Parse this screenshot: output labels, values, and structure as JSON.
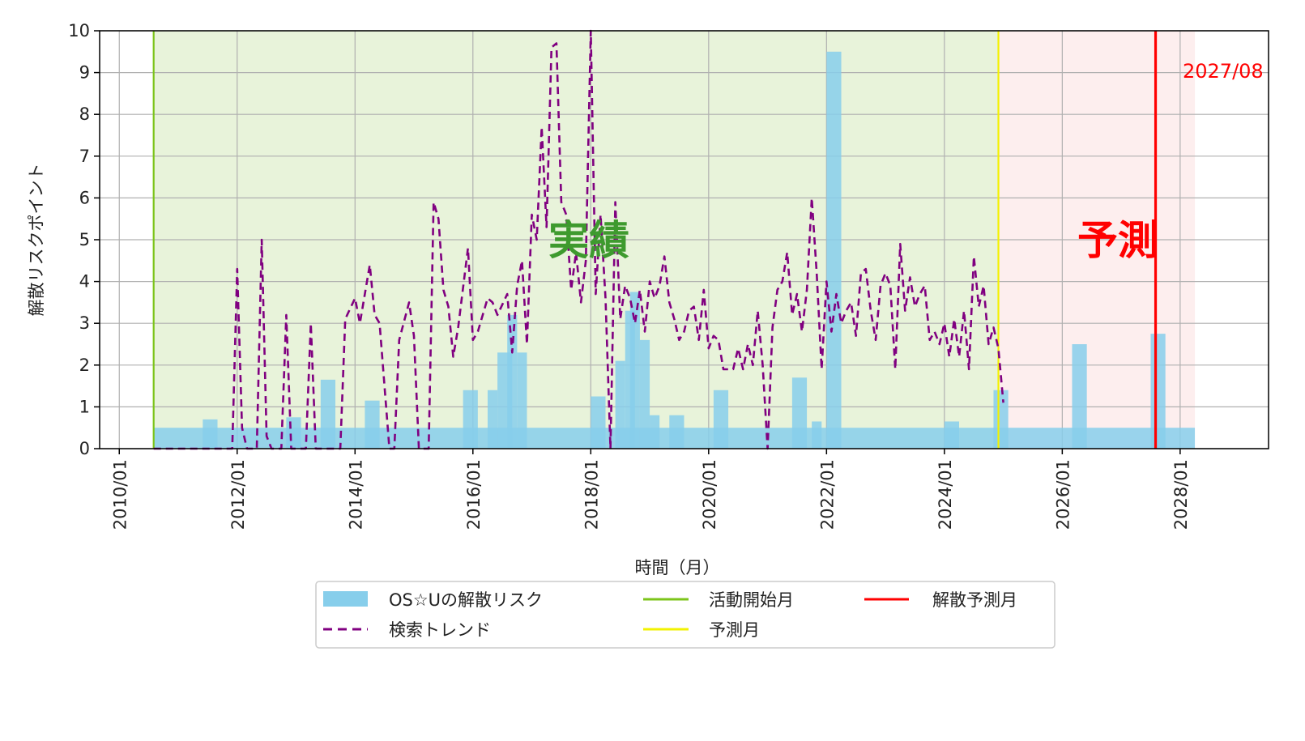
{
  "chart_data": {
    "type": "bar",
    "xlabel": "時間（月）",
    "ylabel": "解散リスクポイント",
    "ylim": [
      0,
      10
    ],
    "xlim": [
      "2009/09",
      "2029/07"
    ],
    "yticks": [
      "0",
      "1",
      "2",
      "3",
      "4",
      "5",
      "6",
      "7",
      "8",
      "9",
      "10"
    ],
    "xticks": [
      "2010/01",
      "2012/01",
      "2014/01",
      "2016/01",
      "2018/01",
      "2020/01",
      "2022/01",
      "2024/01",
      "2026/01",
      "2028/01"
    ],
    "grid": true,
    "legend_position": "bottom-center",
    "colors": {
      "bar": "#87ceeb",
      "trend": "#800080",
      "start_line": "#7cc41a",
      "forecast_line": "#f2f200",
      "dissolution_line": "#ff0000",
      "actual_region": "#e8f3da",
      "forecast_region": "#fdeeee",
      "actual_text": "#3e9a2e",
      "forecast_text": "#ff0000"
    },
    "regions": [
      {
        "label": "実績",
        "from": "2010/08",
        "to": "2024/12"
      },
      {
        "label": "予測",
        "from": "2024/12",
        "to": "2028/04"
      }
    ],
    "vlines": [
      {
        "name": "活動開始月",
        "x": "2010/08"
      },
      {
        "name": "予測月",
        "x": "2024/12"
      },
      {
        "name": "解散予測月",
        "x": "2027/08"
      }
    ],
    "annotation": "2027/08",
    "series": [
      {
        "name": "OS☆Uの解散リスク",
        "type": "bar",
        "baseline": 0.5,
        "segments": [
          {
            "from": "2011/06",
            "to": "2011/09",
            "value": 0.7
          },
          {
            "from": "2012/11",
            "to": "2013/02",
            "value": 0.75
          },
          {
            "from": "2013/06",
            "to": "2013/09",
            "value": 1.65
          },
          {
            "from": "2014/03",
            "to": "2014/06",
            "value": 1.15
          },
          {
            "from": "2015/11",
            "to": "2016/02",
            "value": 1.4
          },
          {
            "from": "2016/04",
            "to": "2016/06",
            "value": 1.4
          },
          {
            "from": "2016/06",
            "to": "2016/09",
            "value": 2.3
          },
          {
            "from": "2016/08",
            "to": "2016/10",
            "value": 3.2
          },
          {
            "from": "2016/10",
            "to": "2016/12",
            "value": 2.3
          },
          {
            "from": "2018/01",
            "to": "2018/04",
            "value": 1.25
          },
          {
            "from": "2018/06",
            "to": "2018/08",
            "value": 2.1
          },
          {
            "from": "2018/08",
            "to": "2018/10",
            "value": 3.3
          },
          {
            "from": "2018/09",
            "to": "2018/11",
            "value": 3.75
          },
          {
            "from": "2018/11",
            "to": "2019/01",
            "value": 2.6
          },
          {
            "from": "2019/01",
            "to": "2019/03",
            "value": 0.8
          },
          {
            "from": "2019/05",
            "to": "2019/08",
            "value": 0.8
          },
          {
            "from": "2020/02",
            "to": "2020/05",
            "value": 1.4
          },
          {
            "from": "2021/06",
            "to": "2021/09",
            "value": 1.7
          },
          {
            "from": "2021/10",
            "to": "2021/12",
            "value": 0.65
          },
          {
            "from": "2022/01",
            "to": "2022/04",
            "value": 9.5
          },
          {
            "from": "2024/01",
            "to": "2024/04",
            "value": 0.65
          },
          {
            "from": "2024/11",
            "to": "2025/02",
            "value": 1.4
          },
          {
            "from": "2026/03",
            "to": "2026/06",
            "value": 2.5
          },
          {
            "from": "2027/07",
            "to": "2027/10",
            "value": 2.75
          }
        ],
        "end": "2028/04"
      },
      {
        "name": "検索トレンド",
        "type": "line",
        "style": "dashed",
        "points": [
          [
            "2010/08",
            0
          ],
          [
            "2011/12",
            0
          ],
          [
            "2012/01",
            4.3
          ],
          [
            "2012/02",
            0.5
          ],
          [
            "2012/03",
            0
          ],
          [
            "2012/05",
            0
          ],
          [
            "2012/06",
            5.0
          ],
          [
            "2012/07",
            0.3
          ],
          [
            "2012/08",
            0
          ],
          [
            "2012/10",
            0
          ],
          [
            "2012/11",
            3.2
          ],
          [
            "2012/12",
            0
          ],
          [
            "2013/03",
            0
          ],
          [
            "2013/04",
            3.0
          ],
          [
            "2013/05",
            0
          ],
          [
            "2013/10",
            0
          ],
          [
            "2013/11",
            3.1
          ],
          [
            "2014/01",
            3.6
          ],
          [
            "2014/02",
            3.0
          ],
          [
            "2014/04",
            4.4
          ],
          [
            "2014/05",
            3.2
          ],
          [
            "2014/06",
            3.0
          ],
          [
            "2014/08",
            0
          ],
          [
            "2014/09",
            0
          ],
          [
            "2014/10",
            2.6
          ],
          [
            "2014/12",
            3.5
          ],
          [
            "2015/01",
            2.7
          ],
          [
            "2015/02",
            0
          ],
          [
            "2015/04",
            0
          ],
          [
            "2015/05",
            5.9
          ],
          [
            "2015/06",
            5.5
          ],
          [
            "2015/07",
            3.8
          ],
          [
            "2015/08",
            3.4
          ],
          [
            "2015/09",
            2.2
          ],
          [
            "2015/10",
            2.9
          ],
          [
            "2015/12",
            4.8
          ],
          [
            "2016/01",
            2.6
          ],
          [
            "2016/02",
            2.8
          ],
          [
            "2016/04",
            3.6
          ],
          [
            "2016/05",
            3.5
          ],
          [
            "2016/06",
            3.2
          ],
          [
            "2016/08",
            3.7
          ],
          [
            "2016/09",
            2.3
          ],
          [
            "2016/10",
            3.9
          ],
          [
            "2016/11",
            4.5
          ],
          [
            "2016/12",
            2.5
          ],
          [
            "2017/01",
            5.6
          ],
          [
            "2017/02",
            5.0
          ],
          [
            "2017/03",
            7.7
          ],
          [
            "2017/04",
            5.3
          ],
          [
            "2017/05",
            9.6
          ],
          [
            "2017/06",
            9.7
          ],
          [
            "2017/07",
            5.9
          ],
          [
            "2017/08",
            5.6
          ],
          [
            "2017/09",
            3.8
          ],
          [
            "2017/10",
            4.7
          ],
          [
            "2017/11",
            3.5
          ],
          [
            "2017/12",
            4.5
          ],
          [
            "2018/01",
            10.0
          ],
          [
            "2018/02",
            3.7
          ],
          [
            "2018/03",
            5.6
          ],
          [
            "2018/04",
            3.6
          ],
          [
            "2018/05",
            0
          ],
          [
            "2018/06",
            5.9
          ],
          [
            "2018/07",
            3.1
          ],
          [
            "2018/08",
            3.9
          ],
          [
            "2018/09",
            3.6
          ],
          [
            "2018/10",
            3.0
          ],
          [
            "2018/11",
            3.8
          ],
          [
            "2018/12",
            2.8
          ],
          [
            "2019/01",
            4.0
          ],
          [
            "2019/02",
            3.6
          ],
          [
            "2019/03",
            3.9
          ],
          [
            "2019/04",
            4.6
          ],
          [
            "2019/05",
            3.5
          ],
          [
            "2019/06",
            3.1
          ],
          [
            "2019/07",
            2.6
          ],
          [
            "2019/08",
            2.8
          ],
          [
            "2019/09",
            3.3
          ],
          [
            "2019/10",
            3.4
          ],
          [
            "2019/11",
            2.6
          ],
          [
            "2019/12",
            3.8
          ],
          [
            "2020/01",
            2.4
          ],
          [
            "2020/02",
            2.7
          ],
          [
            "2020/03",
            2.6
          ],
          [
            "2020/04",
            1.9
          ],
          [
            "2020/05",
            1.9
          ],
          [
            "2020/06",
            1.9
          ],
          [
            "2020/07",
            2.4
          ],
          [
            "2020/08",
            1.9
          ],
          [
            "2020/09",
            2.5
          ],
          [
            "2020/10",
            2.0
          ],
          [
            "2020/11",
            3.3
          ],
          [
            "2020/12",
            2.0
          ],
          [
            "2021/01",
            0
          ],
          [
            "2021/02",
            2.9
          ],
          [
            "2021/03",
            3.8
          ],
          [
            "2021/04",
            4.0
          ],
          [
            "2021/05",
            4.7
          ],
          [
            "2021/06",
            3.2
          ],
          [
            "2021/07",
            3.7
          ],
          [
            "2021/08",
            2.8
          ],
          [
            "2021/09",
            3.8
          ],
          [
            "2021/10",
            6.0
          ],
          [
            "2021/11",
            4.2
          ],
          [
            "2021/12",
            1.9
          ],
          [
            "2022/01",
            4.0
          ],
          [
            "2022/02",
            2.8
          ],
          [
            "2022/03",
            3.7
          ],
          [
            "2022/04",
            3.0
          ],
          [
            "2022/05",
            3.3
          ],
          [
            "2022/06",
            3.5
          ],
          [
            "2022/07",
            2.7
          ],
          [
            "2022/08",
            4.2
          ],
          [
            "2022/09",
            4.3
          ],
          [
            "2022/10",
            3.3
          ],
          [
            "2022/11",
            2.6
          ],
          [
            "2022/12",
            3.9
          ],
          [
            "2023/01",
            4.2
          ],
          [
            "2023/02",
            3.9
          ],
          [
            "2023/03",
            1.9
          ],
          [
            "2023/04",
            4.9
          ],
          [
            "2023/05",
            3.3
          ],
          [
            "2023/06",
            4.1
          ],
          [
            "2023/07",
            3.4
          ],
          [
            "2023/08",
            3.7
          ],
          [
            "2023/09",
            3.9
          ],
          [
            "2023/10",
            2.6
          ],
          [
            "2023/11",
            2.8
          ],
          [
            "2023/12",
            2.5
          ],
          [
            "2024/01",
            3.0
          ],
          [
            "2024/02",
            2.2
          ],
          [
            "2024/03",
            3.1
          ],
          [
            "2024/04",
            2.2
          ],
          [
            "2024/05",
            3.3
          ],
          [
            "2024/06",
            1.9
          ],
          [
            "2024/07",
            4.6
          ],
          [
            "2024/08",
            3.4
          ],
          [
            "2024/09",
            3.9
          ],
          [
            "2024/10",
            2.5
          ],
          [
            "2024/11",
            2.9
          ],
          [
            "2024/12",
            2.4
          ],
          [
            "2025/01",
            1.1
          ]
        ]
      }
    ],
    "legend": [
      "OS☆Uの解散リスク",
      "活動開始月",
      "解散予測月",
      "検索トレンド",
      "予測月"
    ]
  }
}
